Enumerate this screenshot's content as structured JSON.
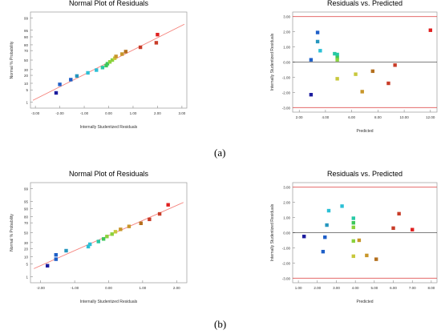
{
  "colors": {
    "fit_line": "#f5807a",
    "limit_line": "#e05555",
    "zero_line": "#000000",
    "frame": "#999999",
    "title_text": "#000000",
    "palette": [
      "#1c1c9e",
      "#1e5fc8",
      "#2596be",
      "#2bc0d6",
      "#27c9a5",
      "#3cc75a",
      "#8ad23c",
      "#c8c83c",
      "#c8962a",
      "#b4701e",
      "#c83c28",
      "#e02020"
    ]
  },
  "panel_labels": {
    "a": "(a)",
    "b": "(b)"
  },
  "chart_data": [
    {
      "id": "a-normal",
      "type": "scatter",
      "title": "Normal Plot of Residuals",
      "xlabel": "Internally Studentized Residuals",
      "ylabel": "Normal % Probability",
      "xlim": [
        -3.2,
        3.2
      ],
      "xticks": [
        "-3.00",
        "-2.00",
        "-1.00",
        "0.00",
        "1.00",
        "2.00",
        "3.00"
      ],
      "xtick_values": [
        -3,
        -2,
        -1,
        0,
        1,
        2,
        3
      ],
      "yticks": [
        "1",
        "5",
        "10",
        "20",
        "30",
        "50",
        "70",
        "80",
        "90",
        "95",
        "99"
      ],
      "ytick_values": [
        1,
        5,
        10,
        20,
        30,
        50,
        70,
        80,
        90,
        95,
        99
      ],
      "fit_line": true,
      "points": [
        {
          "x": -2.15,
          "p": 3.5
        },
        {
          "x": -2.0,
          "p": 9
        },
        {
          "x": -1.55,
          "p": 14
        },
        {
          "x": -1.3,
          "p": 19
        },
        {
          "x": -0.85,
          "p": 24
        },
        {
          "x": -0.5,
          "p": 29
        },
        {
          "x": -0.25,
          "p": 34
        },
        {
          "x": -0.1,
          "p": 38
        },
        {
          "x": -0.05,
          "p": 42
        },
        {
          "x": 0.05,
          "p": 46
        },
        {
          "x": 0.15,
          "p": 50
        },
        {
          "x": 0.25,
          "p": 54
        },
        {
          "x": 0.3,
          "p": 58
        },
        {
          "x": 0.55,
          "p": 63
        },
        {
          "x": 0.7,
          "p": 68
        },
        {
          "x": 1.3,
          "p": 76
        },
        {
          "x": 1.95,
          "p": 83
        },
        {
          "x": 2.0,
          "p": 92
        }
      ]
    },
    {
      "id": "a-resid",
      "type": "scatter",
      "title": "Residuals vs. Predicted",
      "xlabel": "Predicted",
      "ylabel": "Internally Studentized Residuals",
      "xlim": [
        1.5,
        12.5
      ],
      "ylim": [
        -3.3,
        3.3
      ],
      "xticks": [
        "2.00",
        "4.00",
        "6.00",
        "8.00",
        "10.00",
        "12.00"
      ],
      "xtick_values": [
        2,
        4,
        6,
        8,
        10,
        12
      ],
      "yticks": [
        "-3.00",
        "-2.00",
        "-1.00",
        "0.00",
        "1.00",
        "2.00",
        "3.00"
      ],
      "ytick_values": [
        -3,
        -2,
        -1,
        0,
        1,
        2,
        3
      ],
      "limits": [
        3.0,
        -3.0
      ],
      "zero_line": true,
      "points": [
        {
          "x": 2.9,
          "y": -2.15
        },
        {
          "x": 2.9,
          "y": 0.15
        },
        {
          "x": 3.4,
          "y": 1.95
        },
        {
          "x": 3.4,
          "y": 1.35
        },
        {
          "x": 3.6,
          "y": 0.75
        },
        {
          "x": 4.7,
          "y": 0.55
        },
        {
          "x": 4.9,
          "y": 0.5
        },
        {
          "x": 4.9,
          "y": 0.3
        },
        {
          "x": 4.9,
          "y": 0.15
        },
        {
          "x": 4.9,
          "y": -1.1
        },
        {
          "x": 6.3,
          "y": -0.8
        },
        {
          "x": 6.8,
          "y": -1.95
        },
        {
          "x": 7.6,
          "y": -0.6
        },
        {
          "x": 8.8,
          "y": -1.4
        },
        {
          "x": 9.3,
          "y": -0.2
        },
        {
          "x": 12.0,
          "y": 2.1
        }
      ]
    },
    {
      "id": "b-normal",
      "type": "scatter",
      "title": "Normal Plot of Residuals",
      "xlabel": "Internally Studentized Residuals",
      "ylabel": "Normal % Probability",
      "xlim": [
        -2.3,
        2.3
      ],
      "xticks": [
        "-2.00",
        "-1.00",
        "0.00",
        "1.00",
        "2.00"
      ],
      "xtick_values": [
        -2,
        -1,
        0,
        1,
        2
      ],
      "yticks": [
        "1",
        "5",
        "10",
        "20",
        "30",
        "50",
        "70",
        "80",
        "90",
        "95",
        "99"
      ],
      "ytick_values": [
        1,
        5,
        10,
        20,
        30,
        50,
        70,
        80,
        90,
        95,
        99
      ],
      "fit_line": true,
      "points": [
        {
          "x": -1.8,
          "p": 4
        },
        {
          "x": -1.55,
          "p": 8
        },
        {
          "x": -1.55,
          "p": 12
        },
        {
          "x": -1.25,
          "p": 17
        },
        {
          "x": -0.6,
          "p": 23
        },
        {
          "x": -0.55,
          "p": 27
        },
        {
          "x": -0.3,
          "p": 32
        },
        {
          "x": -0.15,
          "p": 37
        },
        {
          "x": -0.05,
          "p": 42
        },
        {
          "x": 0.1,
          "p": 47
        },
        {
          "x": 0.2,
          "p": 52
        },
        {
          "x": 0.35,
          "p": 57
        },
        {
          "x": 0.6,
          "p": 63
        },
        {
          "x": 0.95,
          "p": 69
        },
        {
          "x": 1.2,
          "p": 76
        },
        {
          "x": 1.5,
          "p": 84
        },
        {
          "x": 1.75,
          "p": 93
        }
      ]
    },
    {
      "id": "b-resid",
      "type": "scatter",
      "title": "Residuals vs. Predicted",
      "xlabel": "Predicted",
      "ylabel": "Internally Studentized Residuals",
      "xlim": [
        0.7,
        8.3
      ],
      "ylim": [
        -3.3,
        3.3
      ],
      "xticks": [
        "1.00",
        "2.00",
        "3.00",
        "4.00",
        "5.00",
        "6.00",
        "7.00",
        "8.00"
      ],
      "xtick_values": [
        1,
        2,
        3,
        4,
        5,
        6,
        7,
        8
      ],
      "yticks": [
        "-3.00",
        "-2.00",
        "-1.00",
        "0.00",
        "1.00",
        "2.00",
        "3.00"
      ],
      "ytick_values": [
        -3,
        -2,
        -1,
        0,
        1,
        2,
        3
      ],
      "limits": [
        3.0,
        -3.0
      ],
      "zero_line": true,
      "points": [
        {
          "x": 1.3,
          "y": -0.25
        },
        {
          "x": 2.3,
          "y": -1.25
        },
        {
          "x": 2.4,
          "y": -0.3
        },
        {
          "x": 2.5,
          "y": 0.5
        },
        {
          "x": 2.6,
          "y": 1.45
        },
        {
          "x": 3.3,
          "y": 1.75
        },
        {
          "x": 3.9,
          "y": 0.95
        },
        {
          "x": 3.9,
          "y": 0.65
        },
        {
          "x": 3.9,
          "y": 0.35
        },
        {
          "x": 3.9,
          "y": -0.55
        },
        {
          "x": 4.2,
          "y": -0.5
        },
        {
          "x": 4.6,
          "y": -1.5
        },
        {
          "x": 3.9,
          "y": -1.55
        },
        {
          "x": 5.1,
          "y": -1.75
        },
        {
          "x": 6.0,
          "y": 0.3
        },
        {
          "x": 6.3,
          "y": 1.25
        },
        {
          "x": 7.0,
          "y": 0.2
        }
      ]
    }
  ]
}
